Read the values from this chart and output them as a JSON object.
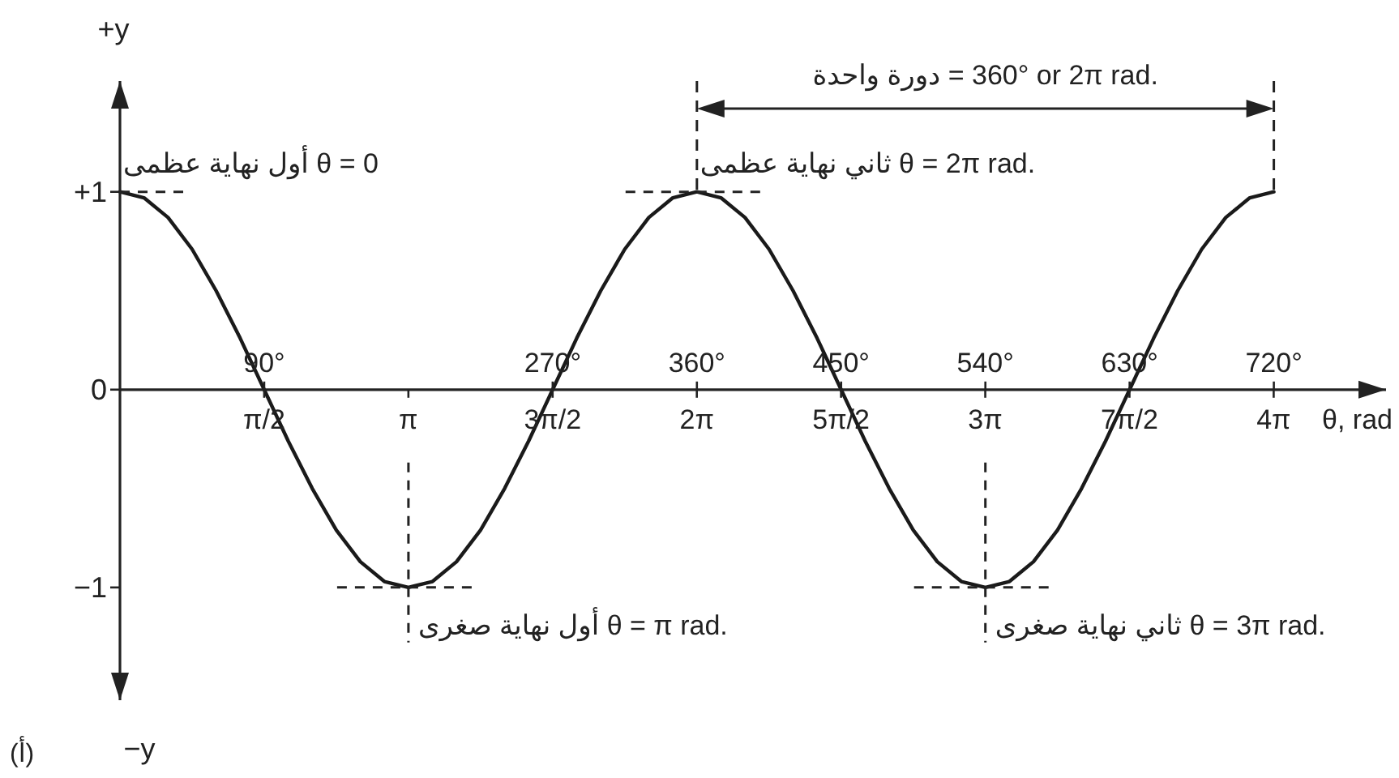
{
  "chart_data": {
    "type": "line",
    "x2label": "θ, rad",
    "ylabel": "+y",
    "x": [
      0,
      15,
      30,
      45,
      60,
      75,
      90,
      105,
      120,
      135,
      150,
      165,
      180,
      195,
      210,
      225,
      240,
      255,
      270,
      285,
      300,
      315,
      330,
      345,
      360,
      375,
      390,
      405,
      420,
      435,
      450,
      465,
      480,
      495,
      510,
      525,
      540,
      555,
      570,
      585,
      600,
      615,
      630,
      645,
      660,
      675,
      690,
      705,
      720
    ],
    "values": [
      1,
      0.97,
      0.87,
      0.71,
      0.5,
      0.26,
      0,
      -0.26,
      -0.5,
      -0.71,
      -0.87,
      -0.97,
      -1,
      -0.97,
      -0.87,
      -0.71,
      -0.5,
      -0.26,
      0,
      0.26,
      0.5,
      0.71,
      0.87,
      0.97,
      1,
      0.97,
      0.87,
      0.71,
      0.5,
      0.26,
      0,
      -0.26,
      -0.5,
      -0.71,
      -0.87,
      -0.97,
      -1,
      -0.97,
      -0.87,
      -0.71,
      -0.5,
      -0.26,
      0,
      0.26,
      0.5,
      0.71,
      0.87,
      0.97,
      1
    ],
    "color": "#1a1a1a",
    "xlim": [
      0,
      790
    ],
    "ylim": [
      -1.57,
      1.56
    ],
    "xticks": [
      {
        "value": 90,
        "label": "90°"
      },
      {
        "value": 270,
        "label": "270°"
      },
      {
        "value": 360,
        "label": "360°"
      },
      {
        "value": 450,
        "label": "450°"
      },
      {
        "value": 540,
        "label": "540°"
      },
      {
        "value": 630,
        "label": "630°"
      },
      {
        "value": 720,
        "label": "720°"
      }
    ],
    "x2lim": [
      0,
      13.79
    ],
    "x2ticks": [
      {
        "value": 1.5708,
        "label": "π/2"
      },
      {
        "value": 3.1416,
        "label": "π"
      },
      {
        "value": 4.7124,
        "label": "3π/2"
      },
      {
        "value": 6.2832,
        "label": "2π"
      },
      {
        "value": 7.854,
        "label": "5π/2"
      },
      {
        "value": 9.4248,
        "label": "3π"
      },
      {
        "value": 10.9956,
        "label": "7π/2"
      },
      {
        "value": 12.5664,
        "label": "4π"
      }
    ],
    "yticks": [
      {
        "value": -1,
        "label": "−1"
      },
      0,
      {
        "value": 1,
        "label": "+1"
      }
    ],
    "ref_lines": [
      {
        "axis": "x",
        "value": 360,
        "line_style": "dashed"
      },
      {
        "axis": "x",
        "value": 720,
        "line_style": "dashed"
      }
    ],
    "annotations": [
      {
        "text": "أول نهاية عظمى θ = 0",
        "x": 0,
        "y": 1
      },
      {
        "text": "ثاني نهاية عظمى θ = 2π rad.",
        "x": 360,
        "y": 1
      },
      {
        "text": "أول نهاية صغرى θ = π rad.",
        "x": 180,
        "y": -1
      },
      {
        "text": "ثاني نهاية صغرى θ = 3π rad.",
        "x": 540,
        "y": -1
      },
      "−y",
      "(أ)",
      "دورة واحدة = 360° or 2π rad."
    ]
  }
}
